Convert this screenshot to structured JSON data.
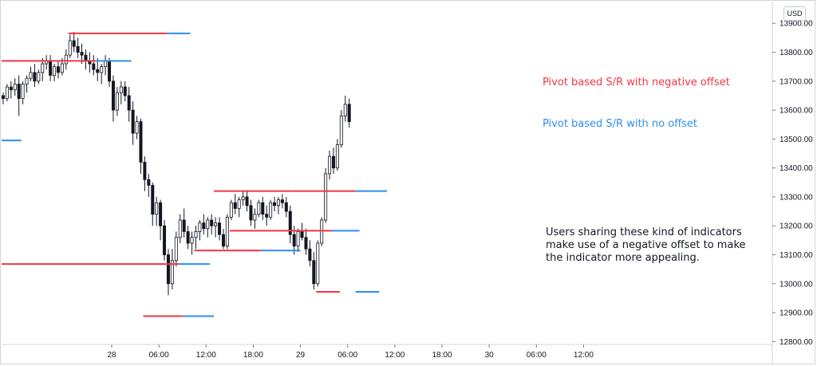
{
  "chart_data": {
    "type": "candlestick",
    "currency": "USD",
    "y_ticks": [
      13900,
      13800,
      13700,
      13600,
      13500,
      13400,
      13300,
      13200,
      13100,
      13000,
      12900,
      12800
    ],
    "y_tick_labels": [
      "13900.00",
      "13800.00",
      "13700.00",
      "13600.00",
      "13500.00",
      "13400.00",
      "13300.00",
      "13200.00",
      "13100.00",
      "13000.00",
      "12900.00",
      "12800.00"
    ],
    "ylim": [
      12790,
      13975
    ],
    "x_tick_labels": [
      "28",
      "06:00",
      "12:00",
      "18:00",
      "29",
      "06:00",
      "12:00",
      "18:00",
      "30",
      "06:00",
      "12:00"
    ],
    "x_hours_range": [
      -14,
      84
    ],
    "x_tick_hours": [
      0,
      6,
      12,
      18,
      24,
      30,
      36,
      42,
      48,
      54,
      60
    ],
    "colors": {
      "negative_offset": "#f23645",
      "no_offset": "#2e8ef0",
      "candle": "#131722",
      "annotation": "#131722"
    },
    "candles": [
      [
        13650,
        13660,
        13620,
        13640
      ],
      [
        13640,
        13690,
        13630,
        13680
      ],
      [
        13680,
        13700,
        13640,
        13670
      ],
      [
        13670,
        13710,
        13650,
        13690
      ],
      [
        13690,
        13720,
        13580,
        13640
      ],
      [
        13640,
        13700,
        13620,
        13690
      ],
      [
        13690,
        13720,
        13660,
        13710
      ],
      [
        13710,
        13750,
        13700,
        13730
      ],
      [
        13730,
        13760,
        13680,
        13700
      ],
      [
        13700,
        13740,
        13690,
        13730
      ],
      [
        13730,
        13780,
        13700,
        13760
      ],
      [
        13760,
        13790,
        13740,
        13770
      ],
      [
        13770,
        13790,
        13700,
        13720
      ],
      [
        13720,
        13760,
        13700,
        13750
      ],
      [
        13750,
        13770,
        13710,
        13730
      ],
      [
        13730,
        13780,
        13720,
        13760
      ],
      [
        13760,
        13810,
        13740,
        13790
      ],
      [
        13790,
        13860,
        13780,
        13840
      ],
      [
        13840,
        13870,
        13800,
        13820
      ],
      [
        13820,
        13850,
        13780,
        13800
      ],
      [
        13800,
        13830,
        13760,
        13790
      ],
      [
        13790,
        13810,
        13740,
        13770
      ],
      [
        13770,
        13800,
        13730,
        13760
      ],
      [
        13760,
        13790,
        13720,
        13740
      ],
      [
        13740,
        13780,
        13700,
        13730
      ],
      [
        13730,
        13760,
        13690,
        13750
      ],
      [
        13750,
        13790,
        13720,
        13770
      ],
      [
        13770,
        13780,
        13680,
        13700
      ],
      [
        13700,
        13720,
        13560,
        13600
      ],
      [
        13600,
        13680,
        13580,
        13660
      ],
      [
        13660,
        13700,
        13620,
        13680
      ],
      [
        13680,
        13700,
        13630,
        13650
      ],
      [
        13650,
        13680,
        13560,
        13600
      ],
      [
        13600,
        13630,
        13480,
        13520
      ],
      [
        13520,
        13580,
        13500,
        13560
      ],
      [
        13560,
        13570,
        13380,
        13420
      ],
      [
        13420,
        13440,
        13320,
        13360
      ],
      [
        13360,
        13380,
        13300,
        13340
      ],
      [
        13340,
        13350,
        13200,
        13240
      ],
      [
        13240,
        13300,
        13200,
        13280
      ],
      [
        13280,
        13290,
        13150,
        13200
      ],
      [
        13200,
        13220,
        13080,
        13100
      ],
      [
        13100,
        13120,
        12960,
        13000
      ],
      [
        13000,
        13120,
        12980,
        13080
      ],
      [
        13080,
        13180,
        13060,
        13160
      ],
      [
        13160,
        13240,
        13140,
        13220
      ],
      [
        13220,
        13260,
        13160,
        13180
      ],
      [
        13180,
        13200,
        13120,
        13140
      ],
      [
        13140,
        13180,
        13100,
        13160
      ],
      [
        13160,
        13200,
        13120,
        13180
      ],
      [
        13180,
        13220,
        13150,
        13210
      ],
      [
        13210,
        13240,
        13170,
        13190
      ],
      [
        13190,
        13230,
        13160,
        13220
      ],
      [
        13220,
        13240,
        13170,
        13200
      ],
      [
        13200,
        13230,
        13160,
        13210
      ],
      [
        13210,
        13230,
        13150,
        13170
      ],
      [
        13170,
        13190,
        13120,
        13130
      ],
      [
        13130,
        13240,
        13120,
        13230
      ],
      [
        13230,
        13290,
        13220,
        13280
      ],
      [
        13280,
        13310,
        13240,
        13260
      ],
      [
        13260,
        13300,
        13230,
        13290
      ],
      [
        13290,
        13320,
        13270,
        13300
      ],
      [
        13300,
        13320,
        13250,
        13270
      ],
      [
        13270,
        13290,
        13200,
        13220
      ],
      [
        13220,
        13260,
        13190,
        13240
      ],
      [
        13240,
        13290,
        13230,
        13280
      ],
      [
        13280,
        13300,
        13220,
        13240
      ],
      [
        13240,
        13270,
        13200,
        13230
      ],
      [
        13230,
        13290,
        13220,
        13280
      ],
      [
        13280,
        13300,
        13250,
        13270
      ],
      [
        13270,
        13300,
        13240,
        13290
      ],
      [
        13290,
        13310,
        13260,
        13280
      ],
      [
        13280,
        13300,
        13230,
        13250
      ],
      [
        13250,
        13270,
        13140,
        13170
      ],
      [
        13170,
        13200,
        13100,
        13130
      ],
      [
        13130,
        13190,
        13110,
        13180
      ],
      [
        13180,
        13210,
        13150,
        13160
      ],
      [
        13160,
        13190,
        13100,
        13120
      ],
      [
        13120,
        13150,
        13060,
        13080
      ],
      [
        13080,
        13110,
        12980,
        13000
      ],
      [
        13000,
        13150,
        12990,
        13140
      ],
      [
        13140,
        13230,
        13130,
        13220
      ],
      [
        13220,
        13400,
        13210,
        13380
      ],
      [
        13380,
        13460,
        13360,
        13440
      ],
      [
        13440,
        13470,
        13380,
        13400
      ],
      [
        13400,
        13500,
        13390,
        13480
      ],
      [
        13480,
        13600,
        13470,
        13580
      ],
      [
        13580,
        13650,
        13560,
        13620
      ],
      [
        13620,
        13640,
        13540,
        13560
      ]
    ],
    "pivot_lines": [
      {
        "offset": "negative",
        "y": 13865,
        "x": [
          -5.5,
          7.0
        ]
      },
      {
        "offset": "none",
        "y": 13865,
        "x": [
          7.0,
          10.0
        ]
      },
      {
        "offset": "negative",
        "y": 13770,
        "x": [
          -14.0,
          -2.0
        ]
      },
      {
        "offset": "none",
        "y": 13770,
        "x": [
          -2.0,
          2.5
        ]
      },
      {
        "offset": "none",
        "y": 13495,
        "x": [
          -14.0,
          -11.5
        ]
      },
      {
        "offset": "negative",
        "y": 13068,
        "x": [
          -14.0,
          8.5
        ]
      },
      {
        "offset": "none",
        "y": 13068,
        "x": [
          8.5,
          12.5
        ]
      },
      {
        "offset": "negative",
        "y": 12888,
        "x": [
          4.0,
          9.0
        ]
      },
      {
        "offset": "none",
        "y": 12888,
        "x": [
          9.0,
          13.0
        ]
      },
      {
        "offset": "negative",
        "y": 13320,
        "x": [
          13.0,
          23.0
        ]
      },
      {
        "offset": "negative",
        "y": 13320,
        "x": [
          23.0,
          31.0
        ]
      },
      {
        "offset": "none",
        "y": 13320,
        "x": [
          31.0,
          35.0
        ]
      },
      {
        "offset": "negative",
        "y": 13115,
        "x": [
          10.5,
          19.0
        ]
      },
      {
        "offset": "none",
        "y": 13115,
        "x": [
          19.0,
          24.0
        ]
      },
      {
        "offset": "negative",
        "y": 13183,
        "x": [
          15.0,
          28.0
        ]
      },
      {
        "offset": "none",
        "y": 13183,
        "x": [
          28.0,
          31.5
        ]
      },
      {
        "offset": "negative",
        "y": 12972,
        "x": [
          26.0,
          29.0
        ]
      },
      {
        "offset": "none",
        "y": 12972,
        "x": [
          31.0,
          34.0
        ]
      }
    ],
    "legend": [
      {
        "label": "Pivot based S/R with negative offset",
        "offset": "negative"
      },
      {
        "label": "Pivot based S/R with no offset",
        "offset": "none"
      }
    ],
    "annotation": "Users sharing these kind of indicators\nmake use of a negative offset to make\nthe indicator more appealing."
  }
}
